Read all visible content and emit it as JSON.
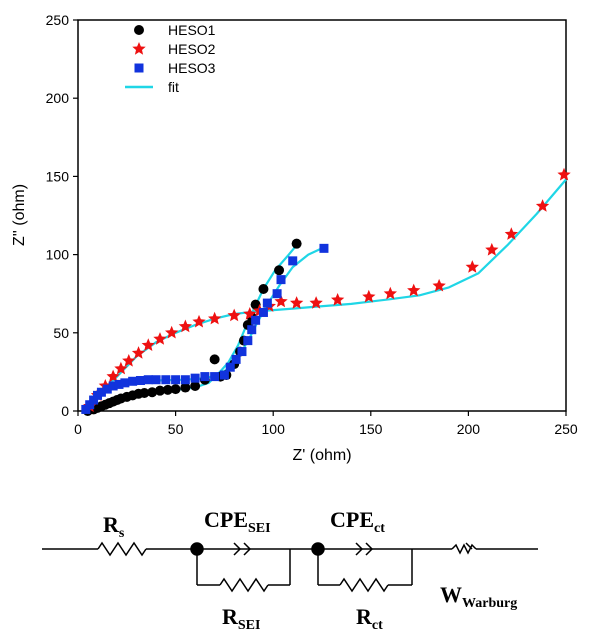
{
  "chart_data": {
    "type": "scatter",
    "title": "",
    "xlabel": "Z' (ohm)",
    "ylabel": "Z'' (ohm)",
    "xlim": [
      0,
      250
    ],
    "ylim": [
      0,
      250
    ],
    "x_ticks": [
      0,
      50,
      100,
      150,
      200,
      250
    ],
    "y_ticks": [
      0,
      50,
      100,
      150,
      200,
      250
    ],
    "grid": false,
    "legend_position": "top-left",
    "series": [
      {
        "name": "HESO1",
        "marker": "circle",
        "color": "#000000",
        "points": [
          [
            5,
            0
          ],
          [
            8,
            1
          ],
          [
            10,
            2
          ],
          [
            12,
            3
          ],
          [
            14,
            4
          ],
          [
            16,
            5
          ],
          [
            18,
            6
          ],
          [
            20,
            7
          ],
          [
            22,
            8
          ],
          [
            25,
            9
          ],
          [
            28,
            10
          ],
          [
            31,
            11
          ],
          [
            34,
            11.5
          ],
          [
            38,
            12
          ],
          [
            42,
            13
          ],
          [
            46,
            13.5
          ],
          [
            50,
            14
          ],
          [
            55,
            15
          ],
          [
            60,
            16
          ],
          [
            65,
            20
          ],
          [
            70,
            33
          ],
          [
            73,
            22
          ],
          [
            76,
            23
          ],
          [
            80,
            30
          ],
          [
            83,
            38
          ],
          [
            85,
            45
          ],
          [
            87,
            55
          ],
          [
            89,
            60
          ],
          [
            91,
            68
          ],
          [
            95,
            78
          ],
          [
            103,
            90
          ],
          [
            112,
            107
          ]
        ]
      },
      {
        "name": "HESO2",
        "marker": "star",
        "color": "#ee1111",
        "points": [
          [
            6,
            3
          ],
          [
            10,
            10
          ],
          [
            14,
            16
          ],
          [
            18,
            22
          ],
          [
            22,
            27
          ],
          [
            26,
            32
          ],
          [
            31,
            37
          ],
          [
            36,
            42
          ],
          [
            42,
            46
          ],
          [
            48,
            50
          ],
          [
            55,
            54
          ],
          [
            62,
            57
          ],
          [
            70,
            59
          ],
          [
            80,
            61
          ],
          [
            88,
            62
          ],
          [
            93,
            64
          ],
          [
            98,
            67
          ],
          [
            104,
            70
          ],
          [
            112,
            69
          ],
          [
            122,
            69
          ],
          [
            133,
            71
          ],
          [
            149,
            73
          ],
          [
            160,
            75
          ],
          [
            172,
            77
          ],
          [
            185,
            80
          ],
          [
            202,
            92
          ],
          [
            212,
            103
          ],
          [
            222,
            113
          ],
          [
            238,
            131
          ],
          [
            249,
            151
          ]
        ]
      },
      {
        "name": "HESO3",
        "marker": "square",
        "color": "#1133dd",
        "points": [
          [
            4,
            1
          ],
          [
            6,
            4
          ],
          [
            8,
            7
          ],
          [
            10,
            10
          ],
          [
            12,
            12
          ],
          [
            15,
            14
          ],
          [
            18,
            16
          ],
          [
            21,
            17
          ],
          [
            24,
            18
          ],
          [
            28,
            19
          ],
          [
            32,
            19.5
          ],
          [
            36,
            20
          ],
          [
            40,
            20
          ],
          [
            45,
            20
          ],
          [
            50,
            20
          ],
          [
            55,
            20
          ],
          [
            60,
            21
          ],
          [
            65,
            22
          ],
          [
            70,
            22
          ],
          [
            75,
            23
          ],
          [
            78,
            28
          ],
          [
            81,
            33
          ],
          [
            84,
            38
          ],
          [
            87,
            45
          ],
          [
            89,
            52
          ],
          [
            91,
            58
          ],
          [
            95,
            63
          ],
          [
            97,
            69
          ],
          [
            102,
            75
          ],
          [
            104,
            84
          ],
          [
            110,
            96
          ],
          [
            126,
            104
          ]
        ]
      },
      {
        "name": "fit",
        "marker": "line",
        "color": "#1fd6e6",
        "lines": [
          [
            [
              4,
              0
            ],
            [
              10,
              3
            ],
            [
              20,
              7
            ],
            [
              30,
              10
            ],
            [
              40,
              12
            ],
            [
              50,
              13.5
            ],
            [
              60,
              15
            ],
            [
              67,
              18
            ],
            [
              72,
              24
            ],
            [
              77,
              31
            ],
            [
              82,
              42
            ],
            [
              86,
              54
            ],
            [
              90,
              65
            ],
            [
              95,
              78
            ],
            [
              101,
              90
            ],
            [
              108,
              100
            ],
            [
              112,
              106
            ]
          ],
          [
            [
              5,
              2
            ],
            [
              10,
              10
            ],
            [
              20,
              22
            ],
            [
              30,
              35
            ],
            [
              40,
              44
            ],
            [
              50,
              50
            ],
            [
              60,
              55
            ],
            [
              70,
              59
            ],
            [
              80,
              62
            ],
            [
              90,
              63.5
            ],
            [
              100,
              64.5
            ],
            [
              110,
              65.5
            ],
            [
              120,
              66.5
            ],
            [
              140,
              68.5
            ],
            [
              160,
              71.5
            ],
            [
              175,
              74
            ],
            [
              190,
              79
            ],
            [
              205,
              88
            ],
            [
              220,
              106
            ],
            [
              235,
              126
            ],
            [
              250,
              148
            ]
          ],
          [
            [
              3,
              1
            ],
            [
              8,
              7
            ],
            [
              14,
              13
            ],
            [
              20,
              16
            ],
            [
              30,
              18.5
            ],
            [
              40,
              19.5
            ],
            [
              55,
              20
            ],
            [
              65,
              21
            ],
            [
              72,
              23
            ],
            [
              78,
              28
            ],
            [
              83,
              36
            ],
            [
              88,
              47
            ],
            [
              92,
              57
            ],
            [
              97,
              68
            ],
            [
              103,
              80
            ],
            [
              110,
              92
            ],
            [
              118,
              100
            ],
            [
              125,
              104
            ]
          ]
        ]
      }
    ]
  },
  "circuit": {
    "rs_main": "R",
    "rs_sub": "s",
    "cpe_sei_main": "CPE",
    "cpe_sei_sub": "SEI",
    "rsei_main": "R",
    "rsei_sub": "SEI",
    "cpe_ct_main": "CPE",
    "cpe_ct_sub": "ct",
    "rct_main": "R",
    "rct_sub": "ct",
    "w_main": "W",
    "w_sub": "Warburg"
  }
}
